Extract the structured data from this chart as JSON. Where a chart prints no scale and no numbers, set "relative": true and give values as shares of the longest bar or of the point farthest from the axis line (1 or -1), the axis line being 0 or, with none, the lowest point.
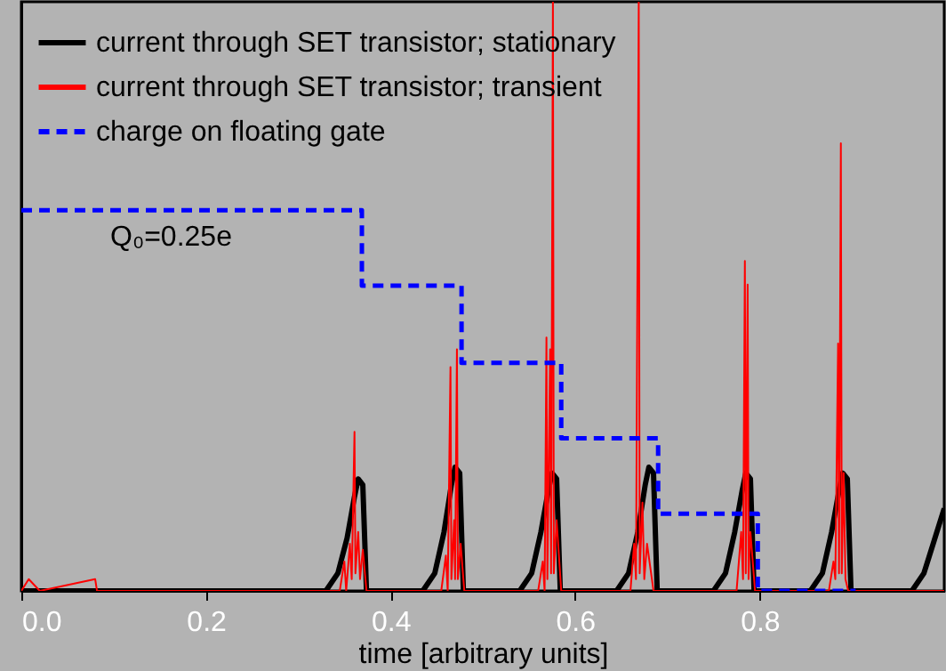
{
  "chart_data": {
    "type": "line",
    "relative": true,
    "xlabel": "time [arbitrary units]",
    "xlim": [
      0,
      1.0
    ],
    "xticks": [
      {
        "value": 0,
        "label": "0.0"
      },
      0.2,
      0.4,
      0.6,
      0.8
    ],
    "legend": "top left",
    "grid": false,
    "marker": "none",
    "annotations": [
      "Q₀=0.25e"
    ],
    "series": [
      {
        "name": "current through SET transistor; stationary",
        "color": "#000000",
        "line_style": "solid",
        "x": [
          0,
          0.33,
          0.343,
          0.353,
          0.361,
          0.365,
          0.37,
          0.374,
          0.435,
          0.448,
          0.458,
          0.466,
          0.47,
          0.475,
          0.479,
          0.54,
          0.553,
          0.563,
          0.571,
          0.575,
          0.58,
          0.584,
          0.645,
          0.658,
          0.668,
          0.676,
          0.68,
          0.685,
          0.689,
          0.75,
          0.763,
          0.773,
          0.781,
          0.785,
          0.79,
          0.794,
          0.855,
          0.868,
          0.878,
          0.886,
          0.89,
          0.895,
          0.899,
          0.965,
          0.978,
          0.988,
          1.0
        ],
        "values": [
          0,
          0,
          0.03,
          0.09,
          0.16,
          0.19,
          0.18,
          0,
          0,
          0.03,
          0.1,
          0.18,
          0.21,
          0.2,
          0,
          0,
          0.03,
          0.1,
          0.17,
          0.2,
          0.19,
          0,
          0,
          0.03,
          0.1,
          0.18,
          0.21,
          0.2,
          0,
          0,
          0.03,
          0.1,
          0.17,
          0.2,
          0.19,
          0,
          0,
          0.03,
          0.1,
          0.17,
          0.2,
          0.19,
          0,
          0,
          0.03,
          0.08,
          0.14
        ]
      },
      {
        "name": "current through SET transistor; transient",
        "color": "#ff0000",
        "line_style": "solid",
        "x": [
          0,
          0.008,
          0.02,
          0.08,
          0.082,
          0.345,
          0.35,
          0.352,
          0.356,
          0.358,
          0.361,
          0.362,
          0.365,
          0.367,
          0.37,
          0.374,
          0.455,
          0.46,
          0.462,
          0.465,
          0.466,
          0.469,
          0.47,
          0.472,
          0.473,
          0.476,
          0.48,
          0.56,
          0.565,
          0.567,
          0.569,
          0.57,
          0.573,
          0.574,
          0.576,
          0.577,
          0.58,
          0.585,
          0.66,
          0.664,
          0.666,
          0.669,
          0.67,
          0.673,
          0.675,
          0.678,
          0.685,
          0.775,
          0.78,
          0.782,
          0.784,
          0.785,
          0.787,
          0.788,
          0.79,
          0.795,
          0.875,
          0.88,
          0.882,
          0.885,
          0.886,
          0.888,
          0.889,
          0.891,
          0.893,
          0.896,
          1.0
        ],
        "values": [
          0,
          0.02,
          0,
          0.02,
          0,
          0,
          0.05,
          0,
          0.08,
          0.02,
          0.27,
          0.03,
          0.1,
          0.02,
          0.07,
          0,
          0,
          0.06,
          0,
          0.38,
          0.02,
          0.12,
          0.02,
          0.41,
          0.02,
          0.08,
          0,
          0,
          0.05,
          0,
          0.43,
          0.02,
          0.41,
          0.03,
          1,
          0.03,
          0.12,
          0,
          0,
          0.08,
          0.02,
          1,
          0.03,
          0.15,
          0.02,
          0.08,
          0,
          0,
          0.1,
          0.02,
          0.56,
          0.03,
          0.52,
          0.02,
          0.1,
          0,
          0,
          0.05,
          0.02,
          0.42,
          0.03,
          0.76,
          0.03,
          0.2,
          0.02,
          0,
          0
        ]
      },
      {
        "name": "charge on floating gate",
        "color": "#0000ff",
        "line_style": "dashed",
        "x": [
          0,
          0.369,
          0.369,
          0.477,
          0.477,
          0.585,
          0.585,
          0.69,
          0.69,
          0.798,
          0.798,
          0.904
        ],
        "values": [
          0.646,
          0.646,
          0.518,
          0.518,
          0.387,
          0.387,
          0.259,
          0.259,
          0.131,
          0.131,
          0,
          0
        ]
      }
    ]
  }
}
